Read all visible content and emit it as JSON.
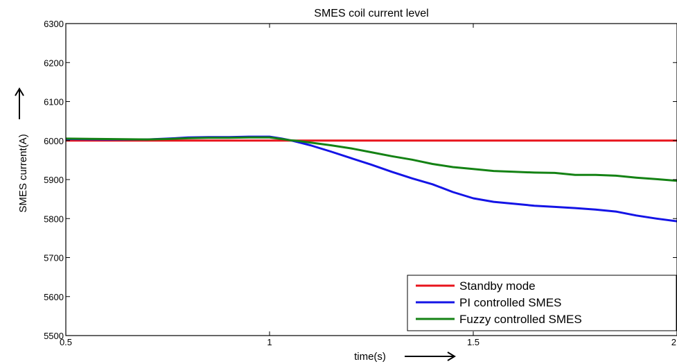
{
  "chart_data": {
    "type": "line",
    "title": "SMES coil current level",
    "xlabel": "time(s)",
    "ylabel": "SMES current(A)",
    "xlim": [
      0.5,
      2
    ],
    "ylim": [
      5500,
      6300
    ],
    "xticks": [
      0.5,
      1,
      1.5,
      2
    ],
    "xtick_labels": [
      "0.5",
      "1",
      "1.5",
      "2"
    ],
    "yticks": [
      5500,
      5600,
      5700,
      5800,
      5900,
      6000,
      6100,
      6200,
      6300
    ],
    "ytick_labels": [
      "5500",
      "5600",
      "5700",
      "5800",
      "5900",
      "6000",
      "6100",
      "6200",
      "6300"
    ],
    "grid": false,
    "legend_position": "bottom-right",
    "series": [
      {
        "name": "Standby mode",
        "color": "#e8141c",
        "x": [
          0.5,
          0.75,
          1.0,
          1.25,
          1.5,
          1.75,
          2.0
        ],
        "y": [
          6000,
          6000,
          6000,
          6000,
          6000,
          6000,
          6000
        ]
      },
      {
        "name": "PI controlled SMES",
        "color": "#1414e6",
        "x": [
          0.5,
          0.6,
          0.7,
          0.75,
          0.8,
          0.85,
          0.9,
          0.95,
          1.0,
          1.03,
          1.05,
          1.07,
          1.1,
          1.15,
          1.2,
          1.25,
          1.3,
          1.35,
          1.4,
          1.45,
          1.5,
          1.55,
          1.6,
          1.65,
          1.7,
          1.75,
          1.8,
          1.85,
          1.9,
          1.95,
          2.0
        ],
        "y": [
          6004,
          6003,
          6003,
          6005,
          6008,
          6009,
          6009,
          6010,
          6010,
          6005,
          6001,
          5996,
          5988,
          5972,
          5955,
          5938,
          5920,
          5903,
          5888,
          5868,
          5852,
          5843,
          5838,
          5833,
          5830,
          5827,
          5823,
          5818,
          5808,
          5800,
          5793
        ]
      },
      {
        "name": "Fuzzy controlled SMES",
        "color": "#148214",
        "x": [
          0.5,
          0.6,
          0.7,
          0.75,
          0.8,
          0.85,
          0.9,
          0.95,
          1.0,
          1.03,
          1.05,
          1.07,
          1.1,
          1.15,
          1.2,
          1.25,
          1.3,
          1.35,
          1.4,
          1.45,
          1.5,
          1.55,
          1.6,
          1.65,
          1.7,
          1.75,
          1.8,
          1.85,
          1.9,
          1.95,
          2.0
        ],
        "y": [
          6005,
          6004,
          6003,
          6004,
          6006,
          6007,
          6007,
          6008,
          6008,
          6004,
          6001,
          5999,
          5995,
          5988,
          5980,
          5970,
          5960,
          5951,
          5940,
          5932,
          5927,
          5922,
          5920,
          5918,
          5917,
          5912,
          5912,
          5910,
          5905,
          5901,
          5897
        ]
      }
    ]
  }
}
